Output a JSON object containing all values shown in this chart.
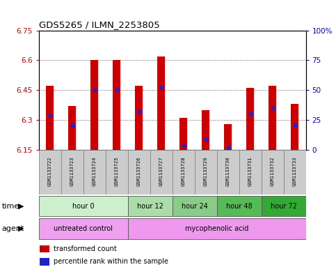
{
  "title": "GDS5265 / ILMN_2253805",
  "samples": [
    "GSM1133722",
    "GSM1133723",
    "GSM1133724",
    "GSM1133725",
    "GSM1133726",
    "GSM1133727",
    "GSM1133728",
    "GSM1133729",
    "GSM1133730",
    "GSM1133731",
    "GSM1133732",
    "GSM1133733"
  ],
  "bar_tops": [
    6.47,
    6.37,
    6.6,
    6.6,
    6.47,
    6.62,
    6.31,
    6.35,
    6.28,
    6.46,
    6.47,
    6.38
  ],
  "bar_bottom": 6.15,
  "blue_values": [
    6.32,
    6.27,
    6.45,
    6.45,
    6.34,
    6.46,
    6.17,
    6.2,
    6.16,
    6.33,
    6.36,
    6.27
  ],
  "ylim_left": [
    6.15,
    6.75
  ],
  "ylim_right": [
    0,
    100
  ],
  "yticks_left": [
    6.15,
    6.3,
    6.45,
    6.6,
    6.75
  ],
  "yticks_right": [
    0,
    25,
    50,
    75,
    100
  ],
  "ytick_labels_left": [
    "6.15",
    "6.3",
    "6.45",
    "6.6",
    "6.75"
  ],
  "ytick_labels_right": [
    "0",
    "25",
    "50",
    "75",
    "100%"
  ],
  "bar_color": "#CC0000",
  "blue_color": "#2222CC",
  "bar_width": 0.35,
  "time_groups": [
    {
      "label": "hour 0",
      "indices": [
        0,
        1,
        2,
        3
      ],
      "color": "#ccf0cc"
    },
    {
      "label": "hour 12",
      "indices": [
        4,
        5
      ],
      "color": "#aaddaa"
    },
    {
      "label": "hour 24",
      "indices": [
        6,
        7
      ],
      "color": "#88cc88"
    },
    {
      "label": "hour 48",
      "indices": [
        8,
        9
      ],
      "color": "#55bb55"
    },
    {
      "label": "hour 72",
      "indices": [
        10,
        11
      ],
      "color": "#33aa33"
    }
  ],
  "agent_groups": [
    {
      "label": "untreated control",
      "indices": [
        0,
        1,
        2,
        3
      ],
      "color": "#f0a0f0"
    },
    {
      "label": "mycophenolic acid",
      "indices": [
        4,
        5,
        6,
        7,
        8,
        9,
        10,
        11
      ],
      "color": "#ee99ee"
    }
  ],
  "legend_bar_color": "#CC0000",
  "legend_blue_color": "#2222CC",
  "legend_tc_label": "transformed count",
  "legend_pr_label": "percentile rank within the sample",
  "plot_bg_color": "#ffffff",
  "grid_color": "#555555",
  "title_color": "#000000",
  "left_tick_color": "#CC0000",
  "right_tick_color": "#0000CC",
  "sample_box_color": "#cccccc",
  "sample_box_edge": "#888888"
}
